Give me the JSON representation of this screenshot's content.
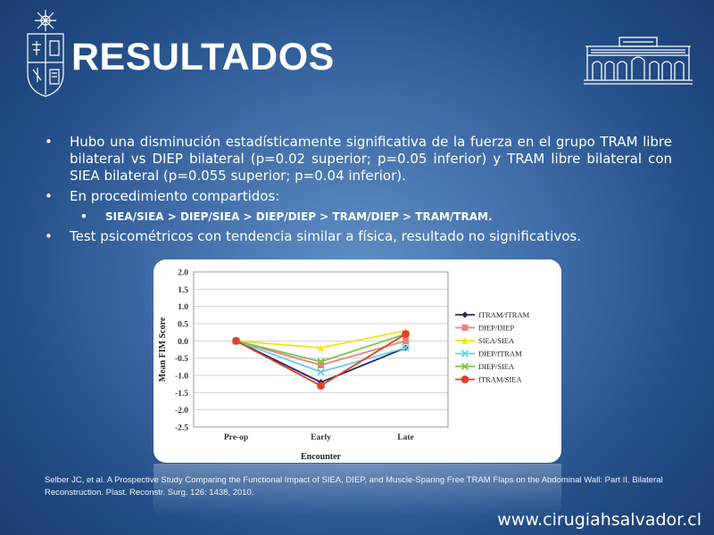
{
  "slide": {
    "title": "RESULTADOS",
    "bullets": [
      "Hubo una disminución estadísticamente significativa de la fuerza en el grupo TRAM libre bilateral vs DIEP bilateral (p=0.02 superior; p=0.05 inferior) y TRAM libre bilateral con SIEA bilateral (p=0.055 superior; p=0.04 inferior).",
      "En procedimiento compartidos:",
      "SIEA/SIEA > DIEP/SIEA > DIEP/DIEP > TRAM/DIEP > TRAM/TRAM.",
      "Test psicométricos con tendencia similar a física, resultado no significativos."
    ],
    "citation": "Selber JC, et al. A Prospective Study Comparing the Functional Impact of SIEA, DIEP, and Muscle-Sparing Free TRAM Flaps on the Abdominal Wall: Part II. Bilateral Reconstruction. Plast. Reconstr. Surg. 126: 1438, 2010.",
    "website": "www.cirugiahsalvador.cl",
    "colors": {
      "background": "#2f5c99",
      "text": "#ffffff"
    },
    "icons": [
      "university-crest-logo",
      "hospital-building-logo"
    ]
  },
  "chart_data": {
    "type": "line",
    "categories": [
      "Pre-op",
      "Early",
      "Late"
    ],
    "xlabel": "Encounter",
    "ylabel": "Mean FIM Score",
    "ylim": [
      -2.5,
      2.0
    ],
    "yticks": [
      "2.0",
      "1.5",
      "1.0",
      "0.5",
      "0.0",
      "-0.5",
      "-1.0",
      "-1.5",
      "-2.0",
      "-2.5"
    ],
    "grid": true,
    "legend_position": "right",
    "series": [
      {
        "name": "fTRAM/fTRAM",
        "color": "#1c2a6b",
        "marker": "diamond",
        "values": [
          0,
          -1.2,
          -0.2
        ]
      },
      {
        "name": "DIEP/DIEP",
        "color": "#f08080",
        "marker": "square",
        "values": [
          0,
          -0.7,
          0.0
        ]
      },
      {
        "name": "SIEA/SIEA",
        "color": "#f2e21a",
        "marker": "triangle",
        "values": [
          0,
          -0.2,
          0.3
        ]
      },
      {
        "name": "DIEP/fTRAM",
        "color": "#6ad0e0",
        "marker": "x",
        "values": [
          0,
          -0.9,
          -0.2
        ]
      },
      {
        "name": "DIEP/SIEA",
        "color": "#7cc44a",
        "marker": "x",
        "values": [
          0,
          -0.6,
          0.2
        ]
      },
      {
        "name": "fTRAM/SIEA",
        "color": "#e0402a",
        "marker": "circle",
        "values": [
          0,
          -1.3,
          0.2
        ]
      }
    ]
  }
}
